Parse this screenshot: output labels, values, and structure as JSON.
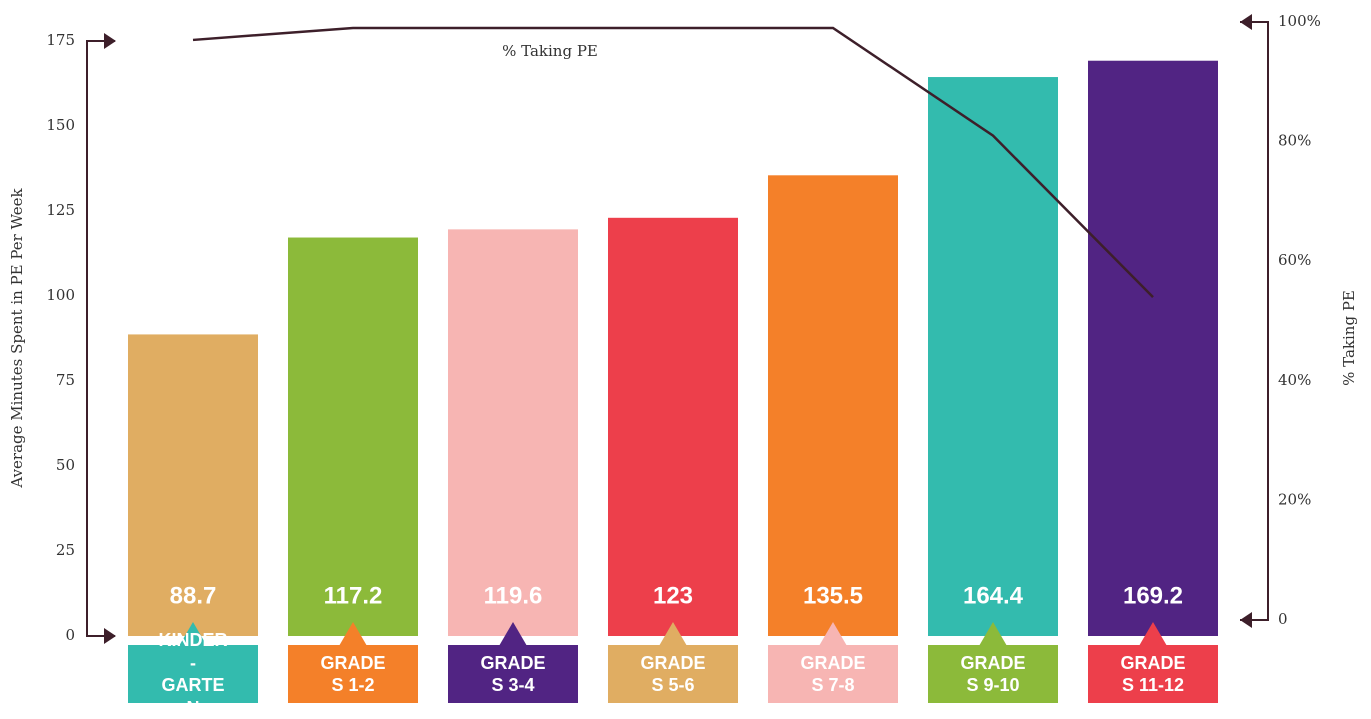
{
  "chart_data": {
    "type": "bar",
    "ylabel": "Average Minutes Spent in PE Per Week",
    "y2label": "% Taking PE",
    "categories": [
      "KINDER-GARTEN",
      "GRADES 1-2",
      "GRADES 3-4",
      "GRADES 5-6",
      "GRADES 7-8",
      "GRADES 9-10",
      "GRADES 11-12"
    ],
    "values": [
      88.7,
      117.2,
      119.6,
      123,
      135.5,
      164.4,
      169.2
    ],
    "colors": [
      "#e0ad62",
      "#8cba3a",
      "#f7b5b3",
      "#ed3f4b",
      "#f48029",
      "#33bbae",
      "#512483"
    ],
    "category_colors": [
      "#33bbae",
      "#f48029",
      "#512483",
      "#e0ad62",
      "#f7b5b3",
      "#8cba3a",
      "#ed3f4b"
    ],
    "line": {
      "name": "% Taking PE",
      "axis": "y2",
      "color": "#3d1f2a",
      "values": [
        97,
        99,
        99,
        99,
        99,
        81,
        54
      ]
    },
    "ylim": [
      0,
      175
    ],
    "yticks": [
      0,
      25,
      50,
      75,
      100,
      125,
      150,
      175
    ],
    "y2lim": [
      0,
      100
    ],
    "y2ticks": [
      0,
      {
        "value": 20,
        "label": "20%"
      },
      {
        "value": 40,
        "label": "40%"
      },
      {
        "value": 60,
        "label": "60%"
      },
      {
        "value": 80,
        "label": "80%"
      },
      {
        "value": 100,
        "label": "100%"
      }
    ],
    "grid": false
  }
}
